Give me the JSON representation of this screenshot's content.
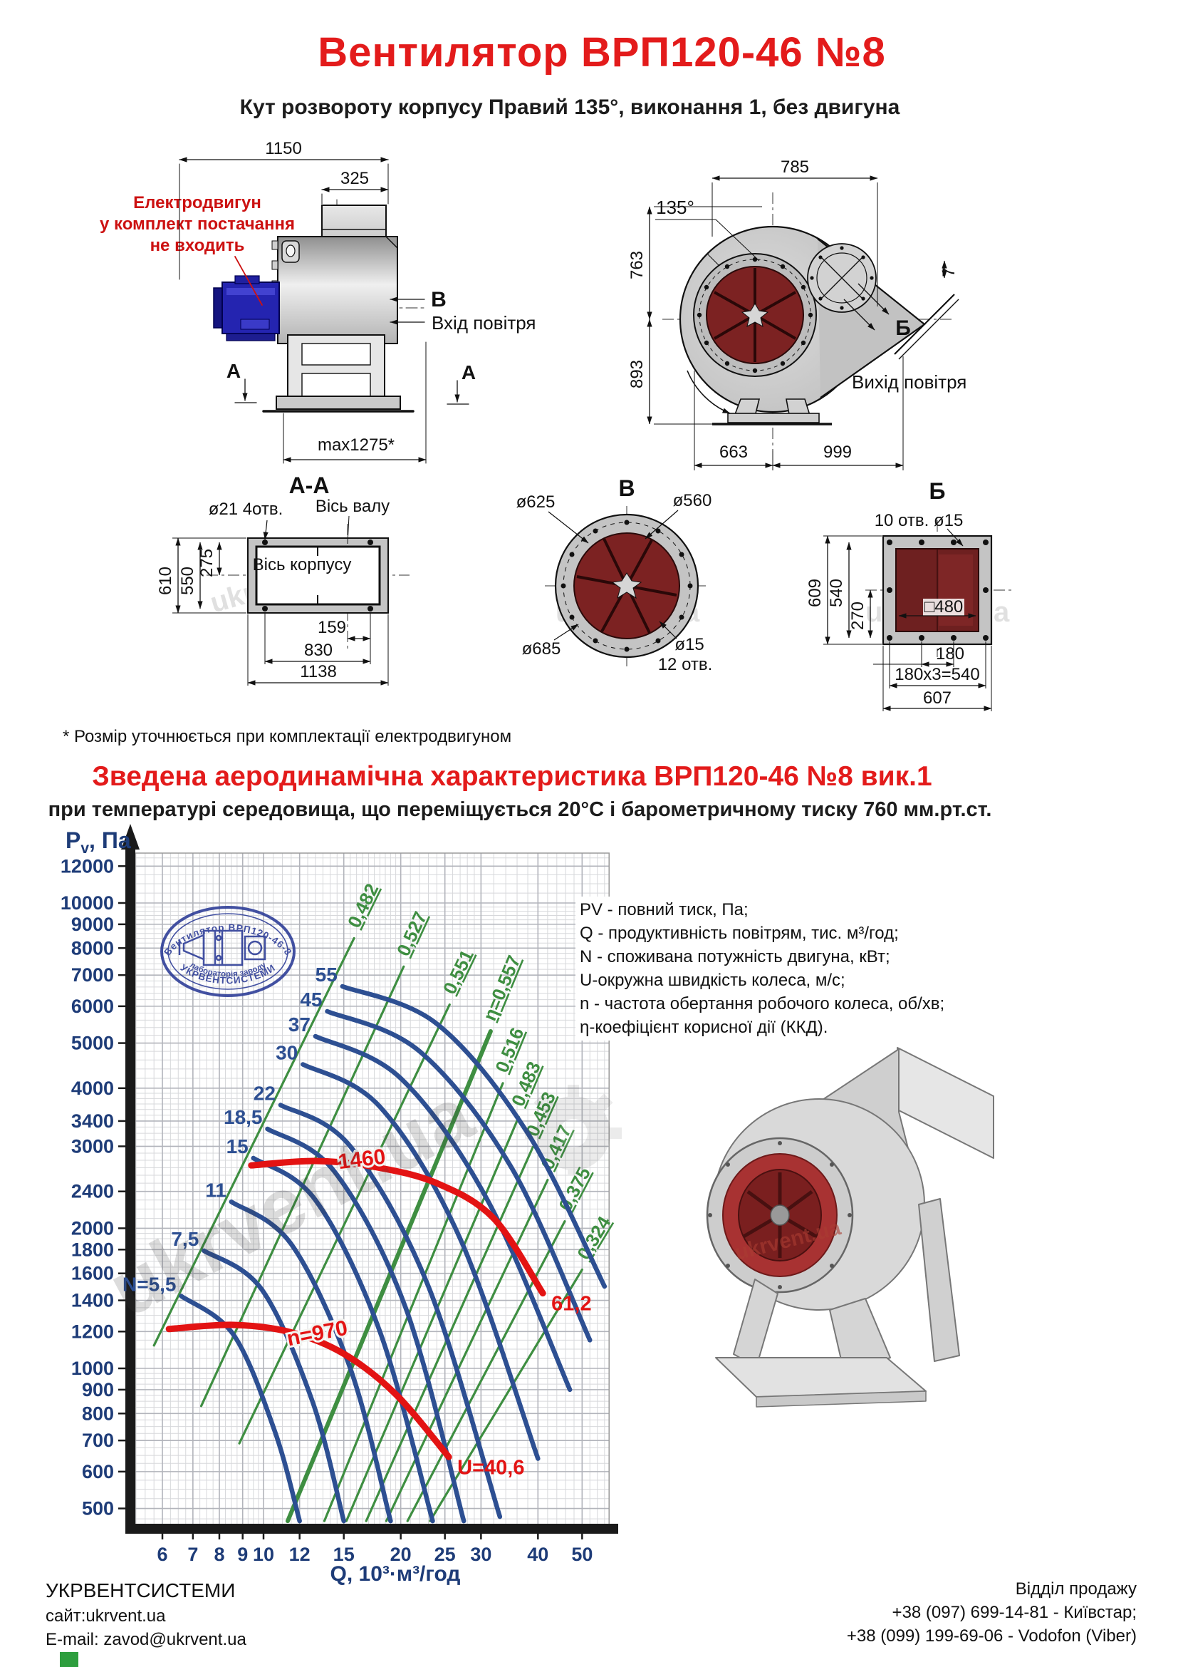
{
  "header": {
    "title": "Вентилятор  ВРП120-46 №8",
    "subtitle": "Кут розвороту корпусу Правий 135°, виконання 1, без двигуна"
  },
  "watermark": "ukrvent.ua",
  "drawings": {
    "note": "* Розмір уточнюється при комплектації електродвигуном",
    "side_view": {
      "motor_note": [
        "Електродвигун",
        "у комплект постачання",
        "не входить"
      ],
      "dim_width_total": "1150",
      "dim_inlet": "325",
      "dim_max": "max1275*",
      "marker_v": "В",
      "inlet_label": "Вхід повітря",
      "marker_a": "А",
      "section_label": "А-А"
    },
    "front_view": {
      "dim_top": "785",
      "angle": "135°",
      "dim_763": "763",
      "dim_893": "893",
      "dim_7": "7",
      "marker_b": "Б",
      "outlet_label": "Вихід повітря",
      "dim_663": "663",
      "dim_999": "999"
    },
    "section_aa": {
      "holes_label": "ø21 4отв.",
      "shaft_axis_label": "Вісь валу",
      "housing_axis_label": "Вісь корпусу",
      "dim_610": "610",
      "dim_550": "550",
      "dim_275": "275",
      "dim_159": "159",
      "dim_830": "830",
      "dim_1138": "1138"
    },
    "view_v": {
      "title": "В",
      "dia_625": "ø625",
      "dia_560": "ø560",
      "dia_685": "ø685",
      "dia_15": "ø15",
      "holes_12": "12 отв."
    },
    "view_b": {
      "title": "Б",
      "holes_label": "10 отв. ø15",
      "dim_609": "609",
      "dim_540": "540",
      "dim_270": "270",
      "dim_480": "□480",
      "dim_180": "180",
      "dim_180x3": "180x3=540",
      "dim_607": "607"
    }
  },
  "chart_section": {
    "title": "Зведена аеродинамічна характеристика ВРП120-46 №8 вик.1",
    "subtitle": "при температурі середовища, що переміщується 20°С і барометричному тиску 760 мм.рт.ст."
  },
  "stamp": {
    "line_top": "Вентилятор ВРП120-46-8",
    "line_mid": "лабораторія заводу",
    "line_bottom": "УКРВЕНТСИСТЕМИ"
  },
  "legend": [
    "PV - повний тиск, Па;",
    "Q - продуктивність повітрям, тис. м³/год;",
    "N - споживана потужність двигуна, кВт;",
    "U-окружна швидкість колеса, м/с;",
    "n - частота обертання робочого колеса, об/хв;",
    "η-коефіцієнт корисної дії (ККД)."
  ],
  "chart_data": {
    "type": "line",
    "title": "Зведена аеродинамічна характеристика ВРП120-46 №8 вик.1",
    "xlabel": "Q, 10³·м³/год",
    "ylabel_parts": [
      "P",
      "v",
      ", Па"
    ],
    "x_scale": "log",
    "y_scale": "log",
    "x_range": [
      5.23,
      57.3
    ],
    "y_range": [
      460,
      12800
    ],
    "x_ticks": [
      6,
      7,
      8,
      9,
      10,
      12,
      15,
      20,
      25,
      30,
      40,
      50
    ],
    "y_ticks": [
      500,
      600,
      700,
      800,
      900,
      1000,
      1200,
      1400,
      1600,
      1800,
      2000,
      2400,
      3000,
      3400,
      4000,
      5000,
      6000,
      7000,
      8000,
      9000,
      10000,
      12000
    ],
    "grid": true,
    "power_curves_kW": {
      "color": "#2d4f92",
      "series": [
        {
          "label": "N=5,5",
          "points": [
            [
              6.6,
              1430
            ],
            [
              8.6,
              1180
            ],
            [
              10.6,
              730
            ],
            [
              12,
              470
            ]
          ]
        },
        {
          "label": "7,5",
          "points": [
            [
              7.4,
              1790
            ],
            [
              9.9,
              1480
            ],
            [
              12.8,
              850
            ],
            [
              15,
              470
            ]
          ]
        },
        {
          "label": "11",
          "points": [
            [
              8.5,
              2280
            ],
            [
              11.5,
              1850
            ],
            [
              15.5,
              1000
            ],
            [
              19,
              470
            ]
          ]
        },
        {
          "label": "15",
          "points": [
            [
              9.5,
              2830
            ],
            [
              13,
              2300
            ],
            [
              18,
              1200
            ],
            [
              23.5,
              470
            ]
          ]
        },
        {
          "label": "18,5",
          "points": [
            [
              10.2,
              3270
            ],
            [
              14.3,
              2650
            ],
            [
              20.5,
              1350
            ],
            [
              27.5,
              470
            ]
          ]
        },
        {
          "label": "22",
          "points": [
            [
              10.9,
              3680
            ],
            [
              15.5,
              3000
            ],
            [
              23,
              1500
            ],
            [
              33,
              480
            ]
          ]
        },
        {
          "label": "30",
          "points": [
            [
              12.2,
              4500
            ],
            [
              18,
              3650
            ],
            [
              27,
              1900
            ],
            [
              40,
              640
            ]
          ]
        },
        {
          "label": "37",
          "points": [
            [
              13,
              5170
            ],
            [
              20,
              4200
            ],
            [
              31,
              2300
            ],
            [
              47,
              900
            ]
          ]
        },
        {
          "label": "45",
          "points": [
            [
              13.8,
              5850
            ],
            [
              22,
              4800
            ],
            [
              35,
              2700
            ],
            [
              52,
              1150
            ]
          ]
        },
        {
          "label": "55",
          "points": [
            [
              14.9,
              6620
            ],
            [
              24,
              5500
            ],
            [
              38,
              3200
            ],
            [
              56,
              1500
            ]
          ]
        }
      ]
    },
    "efficiency_lines": {
      "color": "#3e8e41",
      "series": [
        {
          "label": "0,482",
          "from": [
            5.75,
            1120
          ],
          "to": [
            15.8,
            8400
          ]
        },
        {
          "label": "0,527",
          "from": [
            7.3,
            830
          ],
          "to": [
            20.3,
            7300
          ]
        },
        {
          "label": "0,551",
          "from": [
            8.85,
            690
          ],
          "to": [
            25.6,
            6050
          ]
        },
        {
          "label": "η=0,557",
          "from": [
            11.3,
            470
          ],
          "to": [
            31.5,
            5300
          ],
          "bold": true
        },
        {
          "label": "0,516",
          "from": [
            13.6,
            470
          ],
          "to": [
            33.5,
            4100
          ]
        },
        {
          "label": "0,483",
          "from": [
            15.2,
            470
          ],
          "to": [
            36.3,
            3470
          ]
        },
        {
          "label": "0,453",
          "from": [
            16.8,
            470
          ],
          "to": [
            39,
            2990
          ]
        },
        {
          "label": "0,417",
          "from": [
            18.6,
            470
          ],
          "to": [
            42,
            2540
          ]
        },
        {
          "label": "0,375",
          "from": [
            20.7,
            470
          ],
          "to": [
            45.8,
            2070
          ]
        },
        {
          "label": "0,324",
          "from": [
            23.2,
            470
          ],
          "to": [
            50,
            1630
          ]
        }
      ]
    },
    "speed_curves_rpm": {
      "color": "#e31313",
      "series": [
        {
          "label": "1460",
          "label_at": [
            16.5,
            2720
          ],
          "end_label": "61,2",
          "points": [
            [
              9.4,
              2730
            ],
            [
              13,
              2790
            ],
            [
              17.5,
              2710
            ],
            [
              24,
              2500
            ],
            [
              32,
              2100
            ],
            [
              41,
              1450
            ]
          ]
        },
        {
          "label": "n=970",
          "label_at": [
            13.2,
            1150
          ],
          "end_label": "U=40,6",
          "points": [
            [
              6.2,
              1215
            ],
            [
              8.6,
              1240
            ],
            [
              11.5,
              1195
            ],
            [
              15,
              1075
            ],
            [
              19.5,
              880
            ],
            [
              25.5,
              645
            ]
          ]
        }
      ]
    }
  },
  "footer": {
    "company": "УКРВЕНТСИСТЕМИ",
    "site": "сайт:ukrvent.ua",
    "email": "E-mail: zavod@ukrvent.ua",
    "sales_dept": "Відділ продажу",
    "phone1": "+38 (097) 699-14-81 - Київстар;",
    "phone2": "+38 (099) 199-69-06 - Vodofon (Viber)"
  }
}
